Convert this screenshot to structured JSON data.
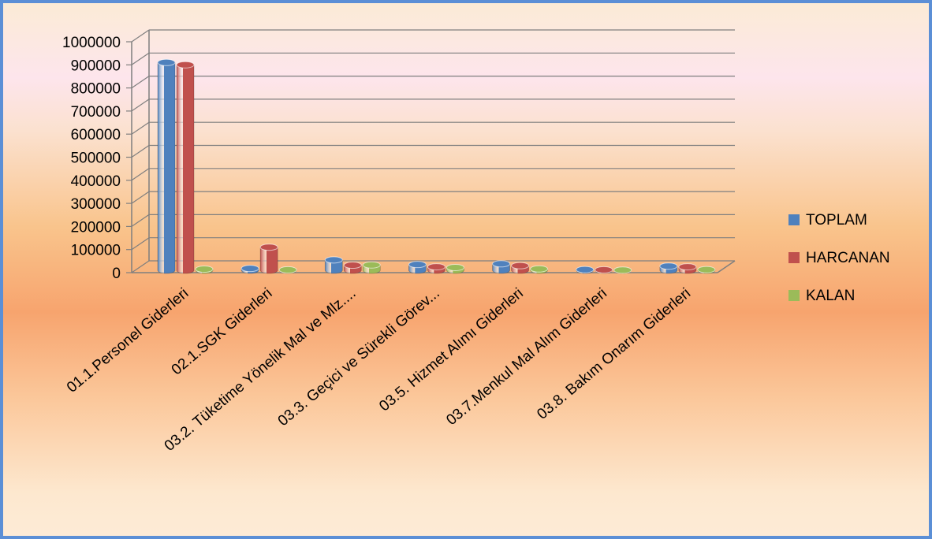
{
  "chart_data": {
    "type": "bar",
    "categories": [
      "01.1.Personel Giderleri",
      "02.1.SGK Giderleri",
      "03.2. Tüketime Yönelik Mal ve Mlz....",
      "03.3. Geçici ve Sürekli Görev...",
      "03.5. Hizmet Alımı Giderleri",
      "03.7.Menkul Mal Alım Giderleri",
      "03.8. Bakım Onarım Giderleri"
    ],
    "series": [
      {
        "name": "TOPLAM",
        "color": "#4f81bd",
        "values": [
          900000,
          8000,
          45000,
          25000,
          28000,
          3000,
          18000
        ]
      },
      {
        "name": "HARCANAN",
        "color": "#c0504d",
        "values": [
          890000,
          100000,
          22000,
          15000,
          20000,
          2000,
          15000
        ]
      },
      {
        "name": "KALAN",
        "color": "#9bbb59",
        "values": [
          5000,
          2000,
          23000,
          12000,
          6000,
          1000,
          3000
        ]
      }
    ],
    "ylim": [
      0,
      1000000
    ],
    "yticks": [
      "0",
      "100000",
      "200000",
      "300000",
      "400000",
      "500000",
      "600000",
      "700000",
      "800000",
      "900000",
      "1000000"
    ],
    "grid": true,
    "legend_position": "right",
    "style": "3d-cylinder"
  }
}
